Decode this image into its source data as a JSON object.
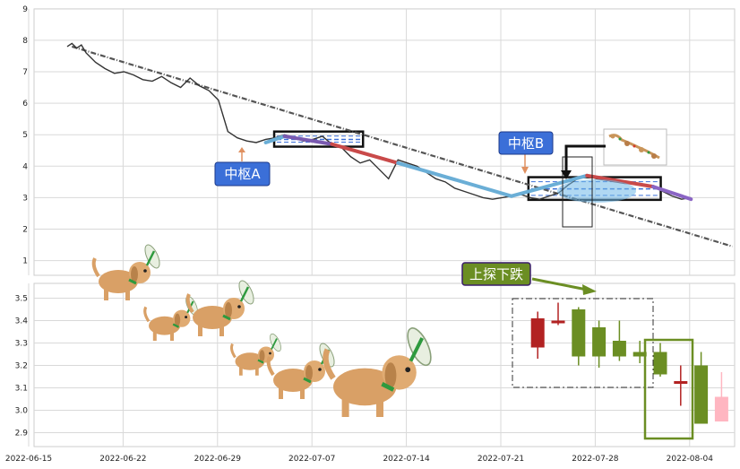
{
  "chart_data": [
    {
      "type": "line",
      "panel": "top",
      "ylim": [
        0.5,
        9
      ],
      "yticks": [
        "1",
        "2",
        "3",
        "4",
        "5",
        "6",
        "7",
        "8",
        "9"
      ],
      "x_range_days": [
        -2,
        51
      ],
      "price": [
        [
          0,
          7.8
        ],
        [
          0.5,
          7.9
        ],
        [
          1,
          7.75
        ],
        [
          1.5,
          7.85
        ],
        [
          2,
          7.6
        ],
        [
          3,
          7.3
        ],
        [
          4,
          7.1
        ],
        [
          5,
          6.95
        ],
        [
          6,
          7.0
        ],
        [
          7,
          6.9
        ],
        [
          8,
          6.75
        ],
        [
          9,
          6.7
        ],
        [
          10,
          6.85
        ],
        [
          11,
          6.65
        ],
        [
          12,
          6.5
        ],
        [
          13,
          6.8
        ],
        [
          14,
          6.55
        ],
        [
          15,
          6.4
        ],
        [
          16,
          6.1
        ],
        [
          17,
          5.1
        ],
        [
          18,
          4.9
        ],
        [
          19,
          4.8
        ],
        [
          20,
          4.75
        ],
        [
          21,
          4.85
        ],
        [
          22,
          4.9
        ],
        [
          23,
          5.0
        ],
        [
          24,
          4.9
        ],
        [
          25,
          4.8
        ],
        [
          26,
          4.85
        ],
        [
          27,
          4.95
        ],
        [
          28,
          4.7
        ],
        [
          29,
          4.6
        ],
        [
          30,
          4.3
        ],
        [
          31,
          4.1
        ],
        [
          32,
          4.2
        ],
        [
          33,
          3.9
        ],
        [
          34,
          3.6
        ],
        [
          35,
          4.2
        ],
        [
          36,
          4.1
        ],
        [
          37,
          4.0
        ],
        [
          38,
          3.8
        ],
        [
          39,
          3.6
        ],
        [
          40,
          3.5
        ],
        [
          41,
          3.3
        ],
        [
          42,
          3.2
        ],
        [
          43,
          3.1
        ],
        [
          44,
          3.0
        ],
        [
          45,
          2.95
        ],
        [
          46,
          3.0
        ],
        [
          47,
          3.05
        ],
        [
          48,
          3.1
        ],
        [
          49,
          3.0
        ],
        [
          50,
          2.95
        ],
        [
          51,
          3.05
        ],
        [
          52,
          3.15
        ],
        [
          53,
          3.4
        ],
        [
          54,
          3.6
        ],
        [
          55,
          3.7
        ],
        [
          56,
          3.6
        ],
        [
          57,
          3.55
        ],
        [
          58,
          3.5
        ],
        [
          59,
          3.45
        ],
        [
          60,
          3.45
        ],
        [
          61,
          3.4
        ],
        [
          62,
          3.35
        ],
        [
          63,
          3.2
        ],
        [
          64,
          3.05
        ],
        [
          65,
          2.95
        ],
        [
          66,
          3.0
        ]
      ],
      "stroke_line": [
        [
          0,
          7.8
        ],
        [
          21,
          4.75
        ],
        [
          23,
          4.95
        ],
        [
          28,
          4.7
        ],
        [
          35,
          4.1
        ],
        [
          47,
          3.05
        ],
        [
          55,
          3.7
        ],
        [
          62,
          3.35
        ],
        [
          66,
          2.95
        ]
      ],
      "trend": [
        [
          0.5,
          7.8
        ],
        [
          51,
          1.45
        ]
      ],
      "zhongshu": [
        {
          "label": "中枢A",
          "x0": 21.9,
          "x1": 31.3,
          "y0": 4.62,
          "y1": 5.1,
          "mid": 4.85
        },
        {
          "label": "中枢B",
          "x0": 48.8,
          "x1": 62.8,
          "y0": 2.93,
          "y1": 3.65,
          "mid": 3.28
        }
      ]
    },
    {
      "type": "candlestick",
      "panel": "bottom",
      "ylim": [
        2.86,
        3.58
      ],
      "yticks": [
        "2.9",
        "3.0",
        "3.1",
        "3.2",
        "3.3",
        "3.4",
        "3.5"
      ],
      "xticks": [
        "2022-06-15",
        "2022-06-22",
        "2022-06-29",
        "2022-07-07",
        "2022-07-14",
        "2022-07-21",
        "2022-07-28",
        "2022-08-04"
      ],
      "candles": [
        {
          "x": 36.0,
          "open": 3.28,
          "high": 3.44,
          "low": 3.23,
          "close": 3.41
        },
        {
          "x": 37.5,
          "open": 3.4,
          "high": 3.48,
          "low": 3.38,
          "close": 3.4
        },
        {
          "x": 39.0,
          "open": 3.45,
          "high": 3.46,
          "low": 3.2,
          "close": 3.24
        },
        {
          "x": 40.5,
          "open": 3.37,
          "high": 3.4,
          "low": 3.19,
          "close": 3.24
        },
        {
          "x": 42.0,
          "open": 3.31,
          "high": 3.4,
          "low": 3.22,
          "close": 3.24
        },
        {
          "x": 43.5,
          "open": 3.26,
          "high": 3.31,
          "low": 3.21,
          "close": 3.24
        },
        {
          "x": 45.0,
          "open": 3.26,
          "high": 3.3,
          "low": 3.15,
          "close": 3.16
        },
        {
          "x": 46.5,
          "open": 3.13,
          "high": 3.2,
          "low": 3.02,
          "close": 3.13
        },
        {
          "x": 48.0,
          "open": 3.2,
          "high": 3.26,
          "low": 2.94,
          "close": 2.94
        },
        {
          "x": 49.5,
          "open": 2.95,
          "high": 3.17,
          "low": 2.95,
          "close": 3.06
        }
      ]
    }
  ],
  "annotations": {
    "zhongshu_a": "中枢A",
    "zhongshu_b": "中枢B",
    "pattern": "上探下跌"
  },
  "colors": {
    "up_candle": "#b22222",
    "down_candle": "#6b8e23",
    "last_candle": "#ffb6c1",
    "label_box": "#3b6fd8",
    "pattern_box": "#6b8e23"
  }
}
